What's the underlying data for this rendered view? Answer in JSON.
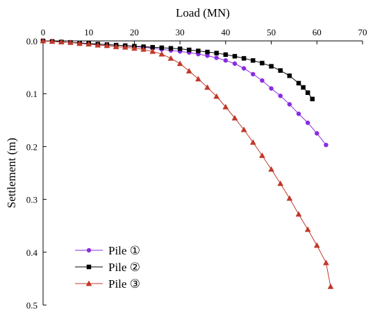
{
  "chart_data": {
    "type": "scatter",
    "title": "",
    "xlabel": "Load (MN)",
    "ylabel": "Settlement (m)",
    "xlim": [
      0,
      70
    ],
    "ylim": [
      0.0,
      0.5
    ],
    "y_inverted": true,
    "x_axis_position": "top",
    "x_ticks": [
      0,
      10,
      20,
      30,
      40,
      50,
      60,
      70
    ],
    "y_ticks": [
      0.0,
      0.1,
      0.2,
      0.3,
      0.4,
      0.5
    ],
    "y_tick_labels": [
      "0.0",
      "0.1",
      "0.2",
      "0.3",
      "0.4",
      "0.5"
    ],
    "grid": false,
    "legend": "bottom-left",
    "series": [
      {
        "name": "Pile ①",
        "color": "#8a2be2",
        "marker": "circle",
        "x": [
          0,
          2,
          4,
          6,
          8,
          10,
          12,
          14,
          16,
          18,
          20,
          22,
          24,
          26,
          28,
          30,
          32,
          34,
          36,
          38,
          40,
          42,
          44,
          46,
          48,
          50,
          52,
          54,
          56,
          58,
          60,
          62
        ],
        "y": [
          0.0,
          0.001,
          0.002,
          0.003,
          0.004,
          0.005,
          0.006,
          0.007,
          0.008,
          0.009,
          0.011,
          0.012,
          0.014,
          0.016,
          0.018,
          0.02,
          0.022,
          0.025,
          0.028,
          0.032,
          0.037,
          0.043,
          0.052,
          0.063,
          0.075,
          0.09,
          0.104,
          0.12,
          0.138,
          0.155,
          0.175,
          0.197
        ]
      },
      {
        "name": "Pile ②",
        "color": "#000000",
        "marker": "square",
        "x": [
          0,
          2,
          4,
          6,
          8,
          10,
          12,
          14,
          16,
          18,
          20,
          22,
          24,
          26,
          28,
          30,
          32,
          34,
          36,
          38,
          40,
          42,
          44,
          46,
          48,
          50,
          52,
          54,
          56,
          57,
          58,
          59
        ],
        "y": [
          0.0,
          0.001,
          0.002,
          0.003,
          0.004,
          0.005,
          0.006,
          0.007,
          0.008,
          0.009,
          0.01,
          0.011,
          0.012,
          0.013,
          0.014,
          0.015,
          0.017,
          0.019,
          0.021,
          0.023,
          0.026,
          0.029,
          0.033,
          0.037,
          0.042,
          0.048,
          0.056,
          0.066,
          0.08,
          0.088,
          0.098,
          0.11
        ]
      },
      {
        "name": "Pile ③",
        "color": "#c0392b",
        "marker": "triangle",
        "x": [
          0,
          2,
          4,
          6,
          8,
          10,
          12,
          14,
          16,
          18,
          20,
          22,
          24,
          26,
          28,
          30,
          32,
          34,
          36,
          38,
          40,
          42,
          44,
          46,
          48,
          50,
          52,
          54,
          56,
          58,
          60,
          62,
          63
        ],
        "y": [
          0.0,
          0.001,
          0.002,
          0.003,
          0.005,
          0.006,
          0.008,
          0.009,
          0.011,
          0.012,
          0.014,
          0.016,
          0.02,
          0.025,
          0.033,
          0.043,
          0.057,
          0.072,
          0.088,
          0.105,
          0.125,
          0.146,
          0.168,
          0.192,
          0.217,
          0.243,
          0.27,
          0.298,
          0.328,
          0.357,
          0.387,
          0.42,
          0.465
        ]
      }
    ]
  }
}
